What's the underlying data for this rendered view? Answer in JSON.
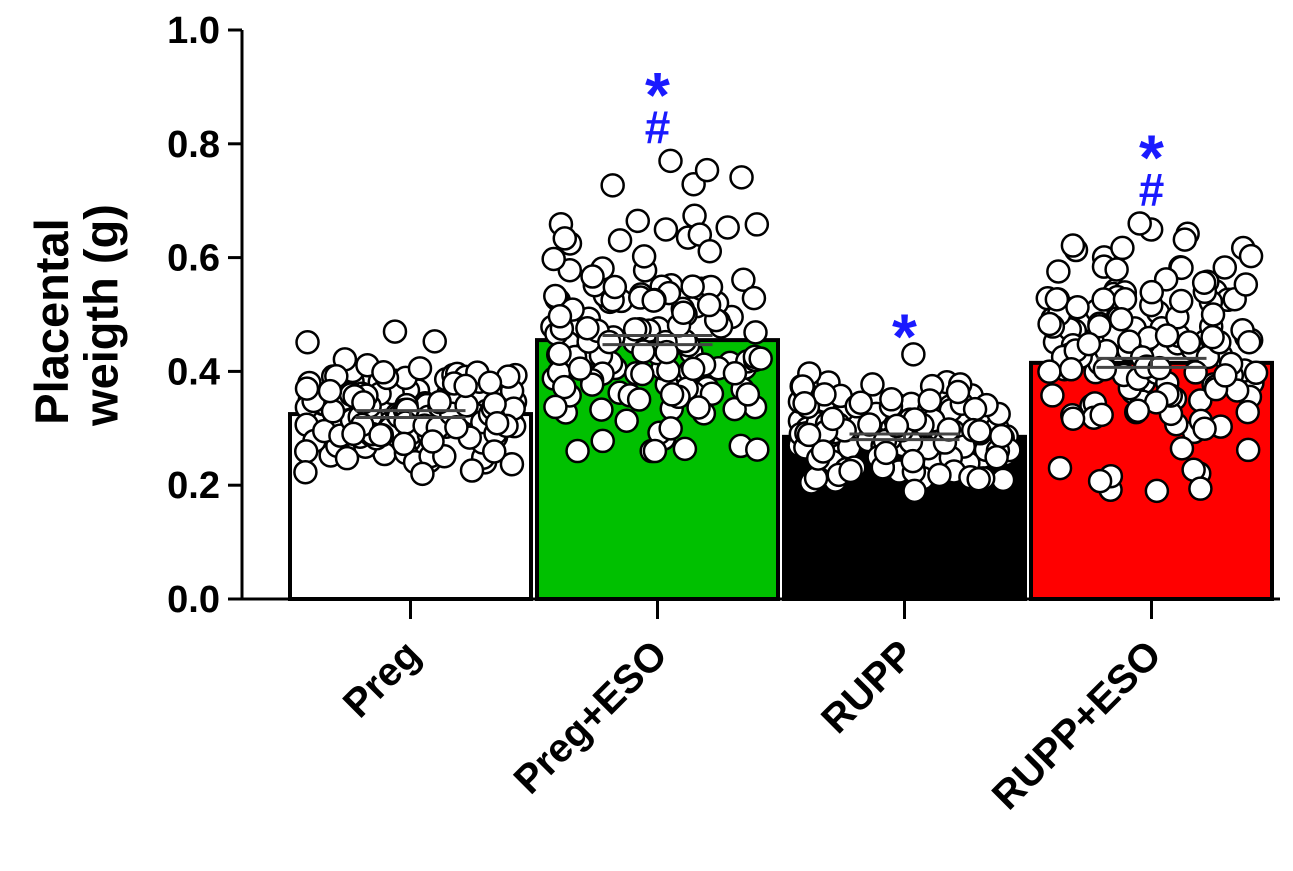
{
  "chart_data": {
    "type": "bar",
    "ylabel": "Placental weigth (g)",
    "ylim": [
      0,
      1.0
    ],
    "yticks": [
      "0.0",
      "0.2",
      "0.4",
      "0.6",
      "0.8",
      "1.0"
    ],
    "categories": [
      "Preg",
      "Preg+ESO",
      "RUPP",
      "RUPP+ESO"
    ],
    "values": [
      0.325,
      0.455,
      0.285,
      0.415
    ],
    "sem": [
      0.006,
      0.008,
      0.005,
      0.008
    ],
    "bar_colors": [
      "#ffffff",
      "#00c000",
      "#000000",
      "#ff0000"
    ],
    "point_spread": [
      {
        "min": 0.22,
        "max": 0.47
      },
      {
        "min": 0.26,
        "max": 0.77
      },
      {
        "min": 0.19,
        "max": 0.43
      },
      {
        "min": 0.19,
        "max": 0.66
      }
    ],
    "significance": [
      {
        "category": "Preg",
        "marks": []
      },
      {
        "category": "Preg+ESO",
        "marks": [
          "*",
          "#"
        ]
      },
      {
        "category": "RUPP",
        "marks": [
          "*"
        ]
      },
      {
        "category": "RUPP+ESO",
        "marks": [
          "*",
          "#"
        ]
      }
    ],
    "grid": false,
    "legend": "none"
  }
}
